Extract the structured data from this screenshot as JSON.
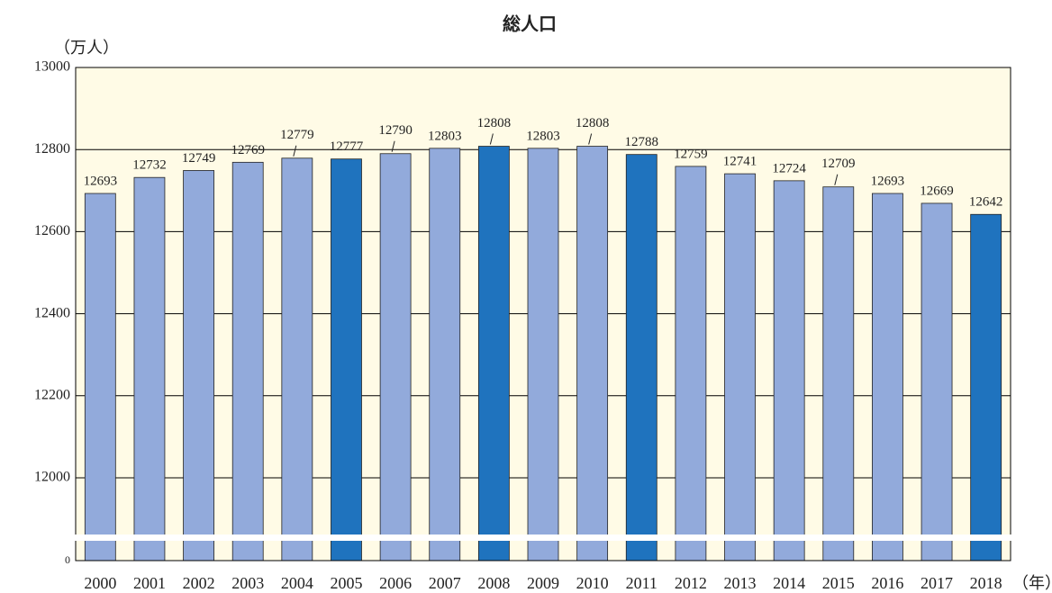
{
  "chart_data": {
    "type": "bar",
    "title": "総人口",
    "y_unit": "（万人）",
    "x_unit": "（年）",
    "categories": [
      "2000",
      "2001",
      "2002",
      "2003",
      "2004",
      "2005",
      "2006",
      "2007",
      "2008",
      "2009",
      "2010",
      "2011",
      "2012",
      "2013",
      "2014",
      "2015",
      "2016",
      "2017",
      "2018"
    ],
    "values": [
      12693,
      12732,
      12749,
      12769,
      12779,
      12777,
      12790,
      12803,
      12808,
      12803,
      12808,
      12788,
      12759,
      12741,
      12724,
      12709,
      12693,
      12669,
      12642
    ],
    "colors": [
      "#92aadb",
      "#92aadb",
      "#92aadb",
      "#92aadb",
      "#92aadb",
      "#1f73be",
      "#92aadb",
      "#92aadb",
      "#1f73be",
      "#92aadb",
      "#92aadb",
      "#1f73be",
      "#92aadb",
      "#92aadb",
      "#92aadb",
      "#92aadb",
      "#92aadb",
      "#92aadb",
      "#1f73be"
    ],
    "ylim": [
      0,
      13000
    ],
    "yticks": [
      0,
      12000,
      12200,
      12400,
      12600,
      12800,
      13000
    ],
    "axis_break": true,
    "grid": true
  }
}
